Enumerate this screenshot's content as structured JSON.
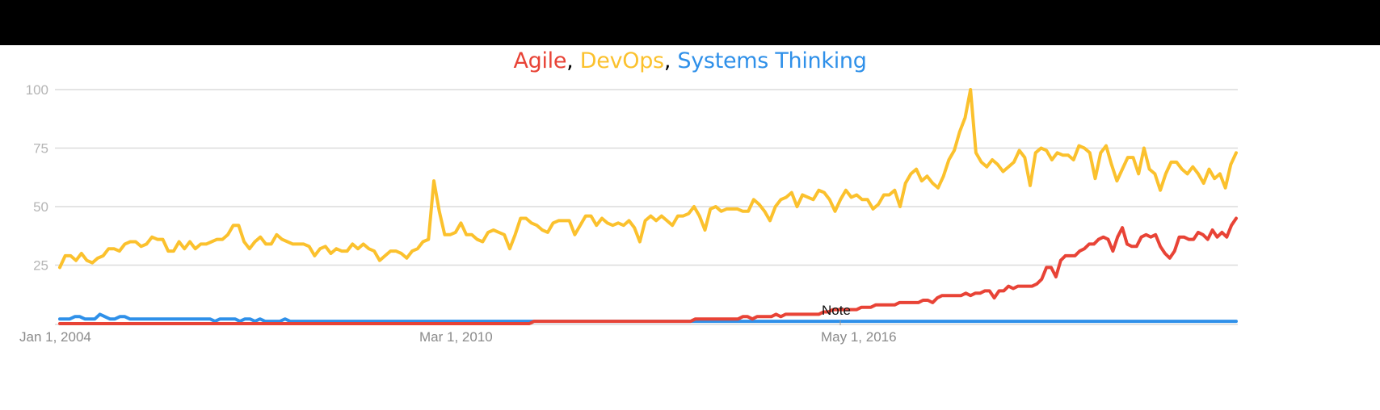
{
  "chart_data": {
    "type": "line",
    "title": "Agile, DevOps, Systems Thinking",
    "xlabel": "",
    "ylabel": "",
    "ylim": [
      0,
      100
    ],
    "y_ticks": [
      25,
      50,
      75,
      100
    ],
    "x_tick_labels": [
      "Jan 1, 2004",
      "Mar 1, 2010",
      "May 1, 2016"
    ],
    "grid": true,
    "legend_position": "title",
    "annotations": [
      {
        "text": "Note",
        "x_approx": "2016-05"
      }
    ],
    "x_start": "2004-01",
    "x_end": "2022-10",
    "series": [
      {
        "name": "Agile",
        "color": "#e84336",
        "values": [
          0,
          0,
          0,
          0,
          0,
          0,
          0,
          0,
          0,
          0,
          0,
          0,
          0,
          0,
          0,
          0,
          0,
          0,
          0,
          0,
          0,
          0,
          0,
          0,
          0,
          0,
          0,
          0,
          0,
          0,
          0,
          0,
          0,
          0,
          0,
          0,
          0,
          0,
          0,
          0,
          0,
          0,
          0,
          0,
          0,
          0,
          0,
          0,
          0,
          0,
          0,
          0,
          0,
          0,
          0,
          0,
          0,
          0,
          0,
          0,
          0,
          0,
          0,
          0,
          0,
          0,
          0,
          0,
          0,
          0,
          0,
          0,
          0,
          0,
          0,
          0,
          0,
          0,
          0,
          0,
          0,
          0,
          0,
          0,
          0,
          0,
          0,
          0,
          0,
          0,
          0,
          0,
          0,
          0,
          0,
          0,
          0,
          0,
          0,
          0,
          1,
          1,
          1,
          1,
          1,
          1,
          1,
          1,
          1,
          1,
          1,
          1,
          1,
          1,
          1,
          1,
          1,
          1,
          1,
          1,
          1,
          1,
          1,
          1,
          1,
          1,
          1,
          1,
          1,
          1,
          1,
          1,
          1,
          1,
          2,
          2,
          2,
          2,
          2,
          2,
          2,
          2,
          2,
          2,
          3,
          3,
          2,
          3,
          3,
          3,
          3,
          4,
          3,
          4,
          4,
          4,
          4,
          4,
          4,
          4,
          4,
          5,
          5,
          6,
          6,
          6,
          6,
          6,
          6,
          7,
          7,
          7,
          8,
          8,
          8,
          8,
          8,
          9,
          9,
          9,
          9,
          9,
          10,
          10,
          9,
          11,
          12,
          12,
          12,
          12,
          12,
          13,
          12,
          13,
          13,
          14,
          14,
          11,
          14,
          14,
          16,
          15,
          16,
          16,
          16,
          16,
          17,
          19,
          24,
          24,
          20,
          27,
          29,
          29,
          29,
          31,
          32,
          34,
          34,
          36,
          37,
          36,
          31,
          37,
          41,
          34,
          33,
          33,
          37,
          38,
          37,
          38,
          33,
          30,
          28,
          31,
          37,
          37,
          36,
          36,
          39,
          38,
          36,
          40,
          37,
          39,
          37,
          42,
          45
        ]
      },
      {
        "name": "DevOps",
        "color": "#fbc12d",
        "values": [
          24,
          29,
          29,
          27,
          30,
          27,
          26,
          28,
          29,
          32,
          32,
          31,
          34,
          35,
          35,
          33,
          34,
          37,
          36,
          36,
          31,
          31,
          35,
          32,
          35,
          32,
          34,
          34,
          35,
          36,
          36,
          38,
          42,
          42,
          35,
          32,
          35,
          37,
          34,
          34,
          38,
          36,
          35,
          34,
          34,
          34,
          33,
          29,
          32,
          33,
          30,
          32,
          31,
          31,
          34,
          32,
          34,
          32,
          31,
          27,
          29,
          31,
          31,
          30,
          28,
          31,
          32,
          35,
          36,
          61,
          48,
          38,
          38,
          39,
          43,
          38,
          38,
          36,
          35,
          39,
          40,
          39,
          38,
          32,
          38,
          45,
          45,
          43,
          42,
          40,
          39,
          43,
          44,
          44,
          44,
          38,
          42,
          46,
          46,
          42,
          45,
          43,
          42,
          43,
          42,
          44,
          41,
          35,
          44,
          46,
          44,
          46,
          44,
          42,
          46,
          46,
          47,
          50,
          46,
          40,
          49,
          50,
          48,
          49,
          49,
          49,
          48,
          48,
          53,
          51,
          48,
          44,
          50,
          53,
          54,
          56,
          50,
          55,
          54,
          53,
          57,
          56,
          53,
          48,
          53,
          57,
          54,
          55,
          53,
          53,
          49,
          51,
          55,
          55,
          57,
          50,
          60,
          64,
          66,
          61,
          63,
          60,
          58,
          63,
          70,
          74,
          82,
          88,
          100,
          73,
          69,
          67,
          70,
          68,
          65,
          67,
          69,
          74,
          71,
          59,
          73,
          75,
          74,
          70,
          73,
          72,
          72,
          70,
          76,
          75,
          73,
          62,
          73,
          76,
          68,
          61,
          66,
          71,
          71,
          64,
          75,
          66,
          64,
          57,
          64,
          69,
          69,
          66,
          64,
          67,
          64,
          60,
          66,
          62,
          64,
          58,
          68,
          73
        ]
      },
      {
        "name": "Systems Thinking",
        "color": "#2f90e9",
        "values": [
          2,
          2,
          2,
          3,
          3,
          2,
          2,
          2,
          4,
          3,
          2,
          2,
          3,
          3,
          2,
          2,
          2,
          2,
          2,
          2,
          2,
          2,
          2,
          2,
          2,
          2,
          2,
          2,
          2,
          2,
          2,
          1,
          2,
          2,
          2,
          2,
          1,
          2,
          2,
          1,
          2,
          1,
          1,
          1,
          1,
          2,
          1,
          1,
          1,
          1,
          1,
          1,
          1,
          1,
          1,
          1,
          1,
          1,
          1,
          1,
          1,
          1,
          1,
          1,
          1,
          1,
          1,
          1,
          1,
          1,
          1,
          1,
          1,
          1,
          1,
          1,
          1,
          1,
          1,
          1,
          1,
          1,
          1,
          1,
          1,
          1,
          1,
          1,
          1,
          1,
          1,
          1,
          1,
          1,
          1,
          1,
          1,
          1,
          1,
          1,
          1,
          1,
          1,
          1,
          1,
          1,
          1,
          1,
          1,
          1,
          1,
          1,
          1,
          1,
          1,
          1,
          1,
          1,
          1,
          1,
          1,
          1,
          1,
          1,
          1,
          1,
          1,
          1,
          1,
          1,
          1,
          1,
          1,
          1,
          1,
          1,
          1,
          1,
          1,
          1,
          1,
          1,
          1,
          1,
          1,
          1,
          1,
          1,
          1,
          1,
          1,
          1,
          1,
          1,
          1,
          1,
          1,
          1,
          1,
          1,
          1,
          1,
          1,
          1,
          1,
          1,
          1,
          1,
          1,
          1,
          1,
          1,
          1,
          1,
          1,
          1,
          1,
          1,
          1,
          1,
          1,
          1,
          1,
          1,
          1,
          1,
          1,
          1,
          1,
          1,
          1,
          1,
          1,
          1,
          1,
          1,
          1,
          1,
          1,
          1,
          1,
          1,
          1,
          1,
          1,
          1,
          1,
          1,
          1,
          1,
          1,
          1,
          1,
          1,
          1,
          1,
          1,
          1,
          1,
          1,
          1,
          1,
          1,
          1,
          1,
          1,
          1,
          1,
          1,
          1,
          1,
          1,
          1,
          1,
          1,
          1
        ]
      }
    ]
  },
  "title_parts": {
    "agile": "Agile",
    "devops": "DevOps",
    "systems": "Systems Thinking",
    "sep": ","
  }
}
